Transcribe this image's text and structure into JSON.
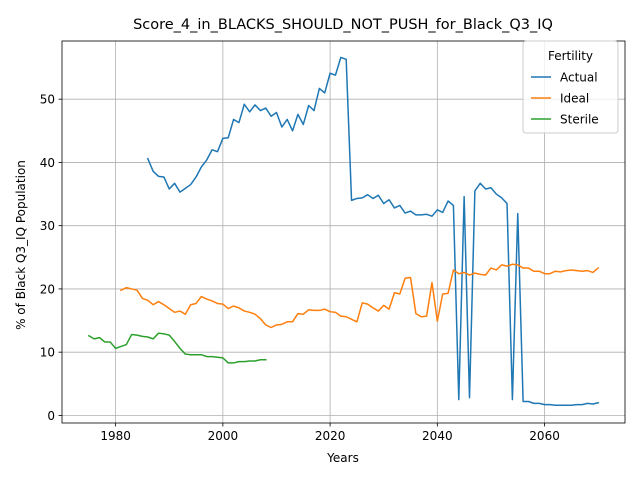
{
  "chart_data": {
    "type": "line",
    "title": "Score_4_in_BLACKS_SHOULD_NOT_PUSH_for_Black_Q3_IQ",
    "xlabel": "Years",
    "ylabel": "% of Black Q3_IQ Population",
    "xlim": [
      1970,
      2075
    ],
    "ylim": [
      -1.2,
      59.2
    ],
    "xticks": [
      1980,
      2000,
      2020,
      2040,
      2060
    ],
    "yticks": [
      0,
      10,
      20,
      30,
      40,
      50
    ],
    "grid": true,
    "legend": {
      "title": "Fertility",
      "placement": "top-right"
    },
    "series": [
      {
        "name": "Actual",
        "color": "#1f77b4",
        "x": [
          1986,
          1987,
          1988,
          1989,
          1990,
          1991,
          1992,
          1993,
          1994,
          1995,
          1996,
          1997,
          1998,
          1999,
          2000,
          2001,
          2002,
          2003,
          2004,
          2005,
          2006,
          2007,
          2008,
          2009,
          2010,
          2011,
          2012,
          2013,
          2014,
          2015,
          2016,
          2017,
          2018,
          2019,
          2020,
          2021,
          2022,
          2023,
          2024,
          2025,
          2026,
          2027,
          2028,
          2029,
          2030,
          2031,
          2032,
          2033,
          2034,
          2035,
          2036,
          2037,
          2038,
          2039,
          2040,
          2041,
          2042,
          2043,
          2044,
          2045,
          2046,
          2047,
          2048,
          2049,
          2050,
          2051,
          2052,
          2053,
          2054,
          2055,
          2056,
          2057,
          2058,
          2059,
          2060,
          2061,
          2062,
          2063,
          2064,
          2065,
          2066,
          2067,
          2068,
          2069,
          2070
        ],
        "y": [
          40.6,
          38.6,
          37.8,
          37.7,
          35.8,
          36.7,
          35.3,
          35.9,
          36.5,
          37.7,
          39.3,
          40.4,
          42.0,
          41.7,
          43.8,
          43.9,
          46.8,
          46.3,
          49.2,
          48.0,
          49.1,
          48.2,
          48.6,
          47.3,
          47.9,
          45.6,
          46.8,
          45.0,
          47.6,
          46.0,
          49.0,
          48.2,
          51.7,
          51.0,
          54.1,
          53.8,
          56.6,
          56.3,
          34.0,
          34.3,
          34.4,
          34.9,
          34.3,
          34.8,
          33.5,
          34.1,
          32.8,
          33.2,
          32.0,
          32.3,
          31.7,
          31.7,
          31.8,
          31.5,
          32.5,
          32.1,
          33.9,
          33.2,
          2.5,
          34.6,
          2.8,
          35.5,
          36.7,
          35.8,
          36.0,
          35.0,
          34.4,
          33.5,
          2.5,
          31.9,
          2.2,
          2.2,
          1.9,
          1.9,
          1.7,
          1.7,
          1.6,
          1.6,
          1.6,
          1.6,
          1.7,
          1.7,
          1.9,
          1.8,
          2.0
        ]
      },
      {
        "name": "Ideal",
        "color": "#ff7f0e",
        "x": [
          1981,
          1982,
          1983,
          1984,
          1985,
          1986,
          1987,
          1988,
          1989,
          1990,
          1991,
          1992,
          1993,
          1994,
          1995,
          1996,
          1997,
          1998,
          1999,
          2000,
          2001,
          2002,
          2003,
          2004,
          2005,
          2006,
          2007,
          2008,
          2009,
          2010,
          2011,
          2012,
          2013,
          2014,
          2015,
          2016,
          2017,
          2018,
          2019,
          2020,
          2021,
          2022,
          2023,
          2024,
          2025,
          2026,
          2027,
          2028,
          2029,
          2030,
          2031,
          2032,
          2033,
          2034,
          2035,
          2036,
          2037,
          2038,
          2039,
          2040,
          2041,
          2042,
          2043,
          2044,
          2045,
          2046,
          2047,
          2048,
          2049,
          2050,
          2051,
          2052,
          2053,
          2054,
          2055,
          2056,
          2057,
          2058,
          2059,
          2060,
          2061,
          2062,
          2063,
          2064,
          2065,
          2066,
          2067,
          2068,
          2069,
          2070
        ],
        "y": [
          19.8,
          20.2,
          20.0,
          19.8,
          18.5,
          18.2,
          17.5,
          18.0,
          17.5,
          16.9,
          16.3,
          16.5,
          16.0,
          17.5,
          17.7,
          18.8,
          18.4,
          18.1,
          17.7,
          17.6,
          16.9,
          17.3,
          17.0,
          16.5,
          16.3,
          16.0,
          15.3,
          14.3,
          13.9,
          14.3,
          14.4,
          14.8,
          14.8,
          16.1,
          16.0,
          16.7,
          16.6,
          16.6,
          16.8,
          16.4,
          16.3,
          15.7,
          15.6,
          15.2,
          14.8,
          17.8,
          17.6,
          17.0,
          16.5,
          17.4,
          16.8,
          19.4,
          19.2,
          21.7,
          21.8,
          16.1,
          15.6,
          15.7,
          21.0,
          14.9,
          19.2,
          19.3,
          23.0,
          22.4,
          22.6,
          22.2,
          22.5,
          22.3,
          22.2,
          23.3,
          23.0,
          23.8,
          23.6,
          23.9,
          23.8,
          23.3,
          23.3,
          22.8,
          22.8,
          22.4,
          22.4,
          22.8,
          22.7,
          22.9,
          23.0,
          22.9,
          22.8,
          22.9,
          22.6,
          23.3
        ]
      },
      {
        "name": "Sterile",
        "color": "#2ca02c",
        "x": [
          1975,
          1976,
          1977,
          1978,
          1979,
          1980,
          1981,
          1982,
          1983,
          1984,
          1985,
          1986,
          1987,
          1988,
          1989,
          1990,
          1991,
          1992,
          1993,
          1994,
          1995,
          1996,
          1997,
          1998,
          1999,
          2000,
          2001,
          2002,
          2003,
          2004,
          2005,
          2006,
          2007,
          2008
        ],
        "y": [
          12.6,
          12.1,
          12.3,
          11.6,
          11.6,
          10.6,
          10.9,
          11.2,
          12.8,
          12.7,
          12.5,
          12.4,
          12.1,
          13.0,
          12.9,
          12.7,
          11.7,
          10.6,
          9.7,
          9.6,
          9.6,
          9.6,
          9.3,
          9.3,
          9.2,
          9.1,
          8.3,
          8.3,
          8.5,
          8.5,
          8.6,
          8.6,
          8.8,
          8.8
        ]
      }
    ]
  }
}
